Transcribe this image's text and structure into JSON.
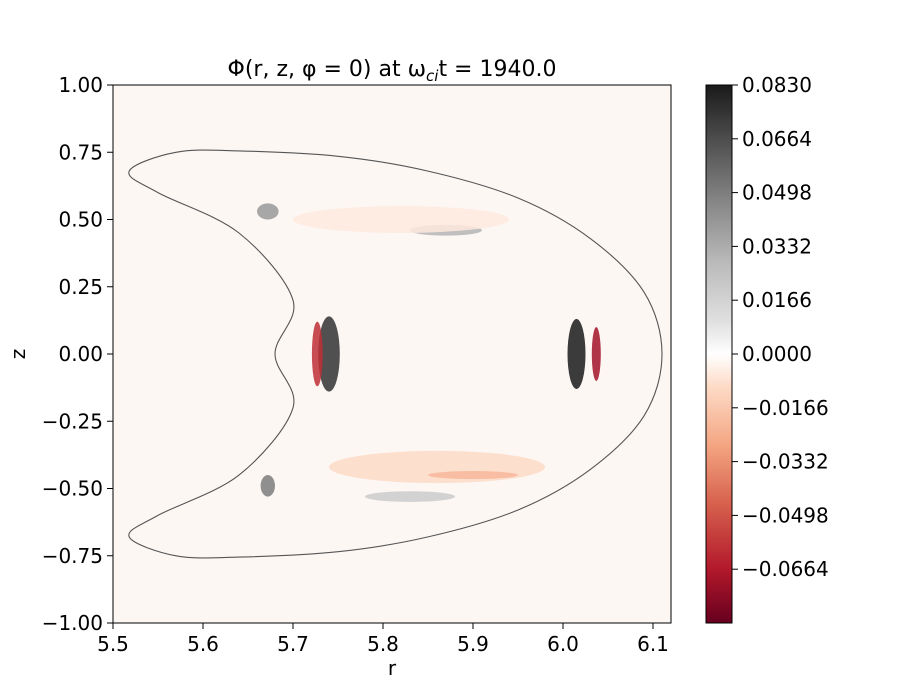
{
  "chart_data": {
    "type": "heatmap",
    "title": "Φ(r, z, φ = 0) at ω",
    "title_sub": "ci",
    "title_tail": "t = 1940.0",
    "xlabel": "r",
    "ylabel": "z",
    "xlim": [
      5.5,
      6.12
    ],
    "ylim": [
      -1.0,
      1.0
    ],
    "x_ticks": [
      "5.5",
      "5.6",
      "5.7",
      "5.8",
      "5.9",
      "6.0",
      "6.1"
    ],
    "x_tick_values": [
      5.5,
      5.6,
      5.7,
      5.8,
      5.9,
      6.0,
      6.1
    ],
    "y_ticks": [
      "1.00",
      "0.75",
      "0.50",
      "0.25",
      "0.00",
      "−0.25",
      "−0.50",
      "−0.75",
      "−1.00"
    ],
    "y_tick_values": [
      1.0,
      0.75,
      0.5,
      0.25,
      0.0,
      -0.25,
      -0.5,
      -0.75,
      -1.0
    ],
    "colorbar": {
      "colormap": "RdGy",
      "range": [
        -0.083,
        0.083
      ],
      "ticks": [
        "0.0830",
        "0.0664",
        "0.0498",
        "0.0332",
        "0.0166",
        "0.0000",
        "−0.0166",
        "−0.0332",
        "−0.0498",
        "−0.0664"
      ],
      "tick_values": [
        0.083,
        0.0664,
        0.0498,
        0.0332,
        0.0166,
        0.0,
        -0.0166,
        -0.0332,
        -0.0498,
        -0.0664
      ]
    },
    "grid": false,
    "background_value": -0.002,
    "boundary": {
      "description": "crescent-shaped plasma boundary",
      "points": [
        [
          5.518,
          0.68
        ],
        [
          5.57,
          0.75
        ],
        [
          5.64,
          0.755
        ],
        [
          5.75,
          0.735
        ],
        [
          5.85,
          0.68
        ],
        [
          5.95,
          0.58
        ],
        [
          6.03,
          0.43
        ],
        [
          6.09,
          0.23
        ],
        [
          6.11,
          0.0
        ],
        [
          6.09,
          -0.23
        ],
        [
          6.03,
          -0.43
        ],
        [
          5.95,
          -0.58
        ],
        [
          5.85,
          -0.68
        ],
        [
          5.75,
          -0.735
        ],
        [
          5.64,
          -0.755
        ],
        [
          5.57,
          -0.75
        ],
        [
          5.518,
          -0.68
        ],
        [
          5.55,
          -0.6
        ],
        [
          5.64,
          -0.45
        ],
        [
          5.7,
          -0.2
        ],
        [
          5.68,
          0.0
        ],
        [
          5.7,
          0.2
        ],
        [
          5.64,
          0.45
        ],
        [
          5.55,
          0.6
        ]
      ]
    },
    "structures": [
      {
        "r": 5.74,
        "z": 0.0,
        "sr": 0.012,
        "sz": 0.14,
        "value": 0.075
      },
      {
        "r": 5.727,
        "z": 0.0,
        "sr": 0.006,
        "sz": 0.12,
        "value": -0.06
      },
      {
        "r": 6.015,
        "z": 0.0,
        "sr": 0.01,
        "sz": 0.13,
        "value": 0.083
      },
      {
        "r": 6.037,
        "z": 0.0,
        "sr": 0.005,
        "sz": 0.1,
        "value": -0.07
      },
      {
        "r": 5.672,
        "z": 0.53,
        "sr": 0.012,
        "sz": 0.03,
        "value": 0.04
      },
      {
        "r": 5.672,
        "z": -0.49,
        "sr": 0.008,
        "sz": 0.04,
        "value": 0.05
      },
      {
        "r": 5.87,
        "z": 0.46,
        "sr": 0.04,
        "sz": 0.02,
        "value": 0.03
      },
      {
        "r": 5.83,
        "z": -0.53,
        "sr": 0.05,
        "sz": 0.02,
        "value": 0.02
      },
      {
        "r": 5.82,
        "z": 0.5,
        "sr": 0.12,
        "sz": 0.05,
        "value": -0.006
      },
      {
        "r": 5.86,
        "z": -0.42,
        "sr": 0.12,
        "sz": 0.06,
        "value": -0.01
      },
      {
        "r": 5.9,
        "z": -0.45,
        "sr": 0.05,
        "sz": 0.015,
        "value": -0.022
      }
    ]
  }
}
